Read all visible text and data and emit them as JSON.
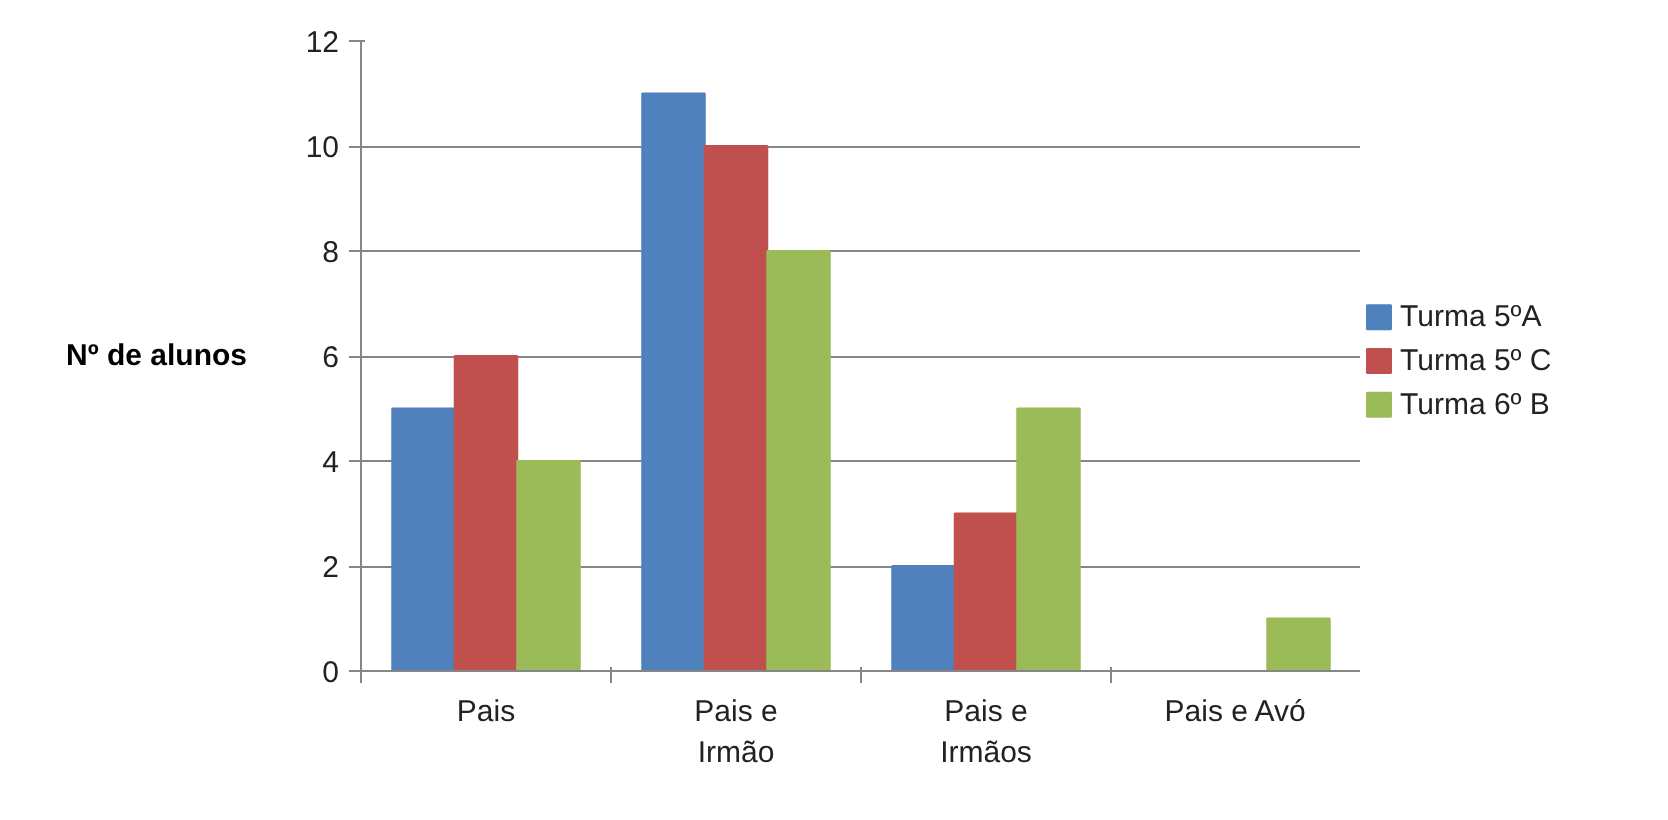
{
  "chart_data": {
    "type": "bar",
    "ylabel": "Nº de alunos",
    "categories": [
      "Pais",
      "Pais e\nIrmão",
      "Pais e\nIrmãos",
      "Pais e Avó"
    ],
    "series": [
      {
        "name": "Turma 5ºA",
        "color": "#4f81bd",
        "values": [
          5,
          11,
          2,
          0
        ]
      },
      {
        "name": "Turma 5º C",
        "color": "#c0504d",
        "values": [
          6,
          10,
          3,
          0
        ]
      },
      {
        "name": "Turma 6º B",
        "color": "#9bbb59",
        "values": [
          4,
          8,
          5,
          1
        ]
      }
    ],
    "ylim": [
      0,
      12
    ],
    "yticks": [
      0,
      2,
      4,
      6,
      8,
      10,
      12
    ],
    "grid": "y",
    "legend": "right"
  }
}
